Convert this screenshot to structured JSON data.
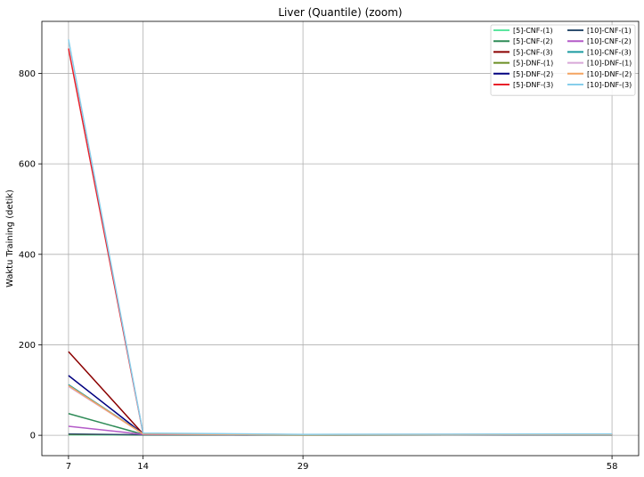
{
  "chart_data": {
    "type": "line",
    "title": "Liver (Quantile) (zoom)",
    "xlabel": "",
    "ylabel": "Waktu Training (detik)",
    "x": [
      7,
      14,
      29,
      58
    ],
    "xlim": [
      4.5,
      60.5
    ],
    "ylim": [
      -45,
      915
    ],
    "xticks": [
      7,
      14,
      29,
      58
    ],
    "yticks": [
      0,
      200,
      400,
      600,
      800
    ],
    "grid": true,
    "legend_position": "top-right",
    "legend_columns": 2,
    "series": [
      {
        "name": "[5]-CNF-(1)",
        "color": "#5ce6a0",
        "values": [
          1,
          0.5,
          0.3,
          0.6
        ]
      },
      {
        "name": "[5]-CNF-(2)",
        "color": "#2e8b57",
        "values": [
          48,
          2,
          1,
          1.5
        ]
      },
      {
        "name": "[5]-CNF-(3)",
        "color": "#8b0000",
        "values": [
          185,
          3,
          1.2,
          2
        ]
      },
      {
        "name": "[5]-DNF-(1)",
        "color": "#6b8e23",
        "values": [
          2,
          1,
          0.5,
          0.8
        ]
      },
      {
        "name": "[5]-DNF-(2)",
        "color": "#000080",
        "values": [
          132,
          3,
          1,
          2
        ]
      },
      {
        "name": "[5]-DNF-(3)",
        "color": "#e8202a",
        "values": [
          855,
          4,
          1.5,
          2.5
        ]
      },
      {
        "name": "[10]-CNF-(1)",
        "color": "#2f4f6f",
        "values": [
          3,
          1,
          0.5,
          1
        ]
      },
      {
        "name": "[10]-CNF-(2)",
        "color": "#b35ac8",
        "values": [
          20,
          2,
          1,
          1.5
        ]
      },
      {
        "name": "[10]-CNF-(3)",
        "color": "#1a9aa0",
        "values": [
          112,
          3,
          1,
          2
        ]
      },
      {
        "name": "[10]-DNF-(1)",
        "color": "#d8a8d8",
        "values": [
          108,
          3,
          1,
          2
        ]
      },
      {
        "name": "[10]-DNF-(2)",
        "color": "#f4a460",
        "values": [
          110,
          3,
          1,
          2
        ]
      },
      {
        "name": "[10]-DNF-(3)",
        "color": "#87ceeb",
        "values": [
          875,
          5,
          2,
          3
        ]
      }
    ]
  }
}
